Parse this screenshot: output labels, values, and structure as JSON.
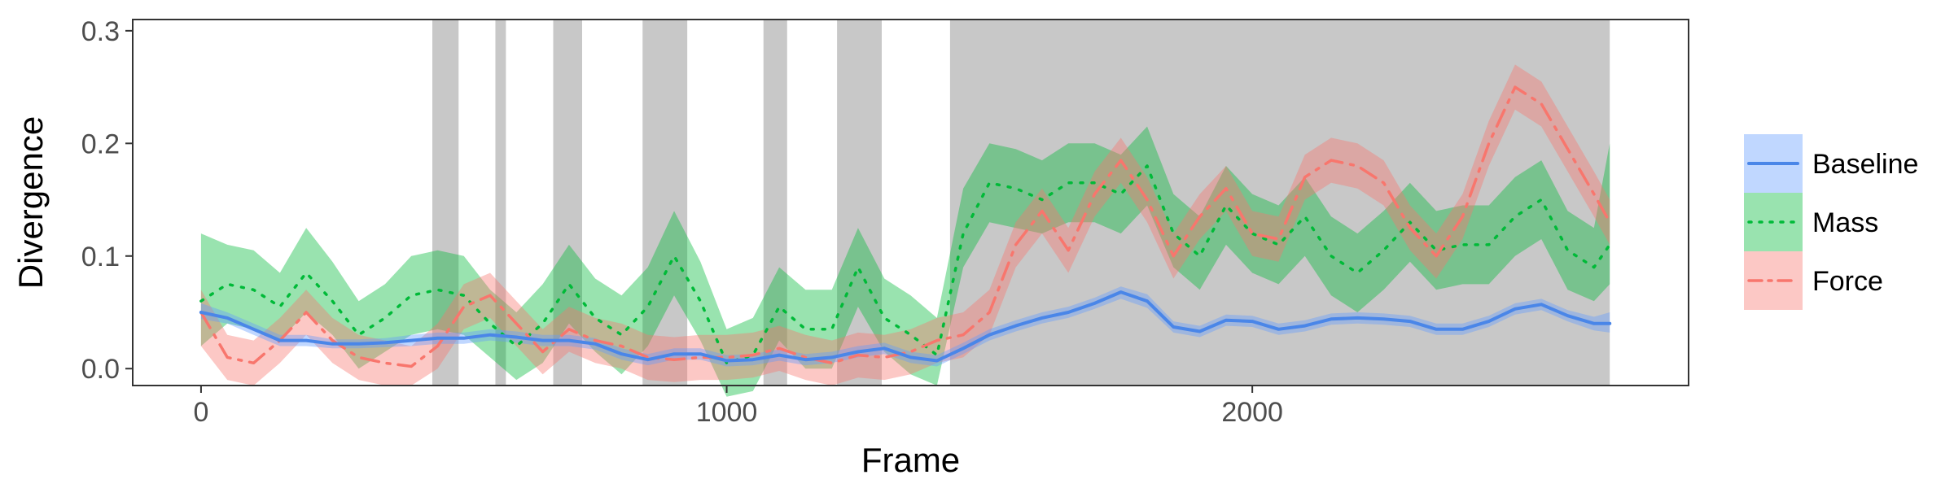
{
  "chart_data": {
    "type": "line",
    "title": "",
    "xlabel": "Frame",
    "ylabel": "Divergence",
    "xlim": [
      -130,
      2830
    ],
    "ylim": [
      -0.015,
      0.31
    ],
    "xticks": [
      0,
      1000,
      2000
    ],
    "xtick_labels": [
      "0",
      "1000",
      "2000"
    ],
    "yticks": [
      0.0,
      0.1,
      0.2,
      0.3
    ],
    "ytick_labels": [
      "0.0",
      "0.1",
      "0.2",
      "0.3"
    ],
    "grid": false,
    "legend_position": "right",
    "shaded_regions": [
      [
        440,
        490
      ],
      [
        560,
        580
      ],
      [
        670,
        725
      ],
      [
        840,
        925
      ],
      [
        1070,
        1115
      ],
      [
        1210,
        1295
      ],
      [
        1425,
        2680
      ]
    ],
    "x": [
      0,
      50,
      100,
      150,
      200,
      250,
      300,
      350,
      400,
      450,
      500,
      550,
      600,
      650,
      700,
      750,
      800,
      850,
      900,
      950,
      1000,
      1050,
      1100,
      1150,
      1200,
      1250,
      1300,
      1350,
      1400,
      1450,
      1500,
      1550,
      1600,
      1650,
      1700,
      1750,
      1800,
      1850,
      1900,
      1950,
      2000,
      2050,
      2100,
      2150,
      2200,
      2250,
      2300,
      2350,
      2400,
      2450,
      2500,
      2550,
      2600,
      2650,
      2680
    ],
    "series": [
      {
        "name": "Baseline",
        "color": "#619cff",
        "line_color": "#4a86e8",
        "dash": "solid",
        "values": [
          0.05,
          0.045,
          0.035,
          0.025,
          0.025,
          0.022,
          0.022,
          0.023,
          0.025,
          0.027,
          0.027,
          0.03,
          0.028,
          0.025,
          0.025,
          0.022,
          0.013,
          0.008,
          0.013,
          0.013,
          0.007,
          0.008,
          0.012,
          0.008,
          0.01,
          0.015,
          0.018,
          0.01,
          0.007,
          0.018,
          0.03,
          0.038,
          0.045,
          0.05,
          0.058,
          0.068,
          0.06,
          0.037,
          0.033,
          0.043,
          0.042,
          0.035,
          0.038,
          0.044,
          0.045,
          0.044,
          0.042,
          0.035,
          0.035,
          0.042,
          0.053,
          0.057,
          0.047,
          0.04,
          0.04
        ],
        "lower": [
          0.044,
          0.04,
          0.03,
          0.02,
          0.02,
          0.018,
          0.018,
          0.019,
          0.02,
          0.022,
          0.022,
          0.025,
          0.023,
          0.02,
          0.02,
          0.017,
          0.008,
          0.003,
          0.008,
          0.008,
          0.002,
          0.003,
          0.007,
          0.003,
          0.005,
          0.01,
          0.013,
          0.005,
          0.002,
          0.013,
          0.025,
          0.033,
          0.04,
          0.045,
          0.053,
          0.062,
          0.054,
          0.032,
          0.028,
          0.038,
          0.037,
          0.03,
          0.033,
          0.039,
          0.04,
          0.039,
          0.037,
          0.03,
          0.03,
          0.037,
          0.048,
          0.052,
          0.042,
          0.034,
          0.032
        ],
        "upper": [
          0.058,
          0.05,
          0.04,
          0.03,
          0.03,
          0.026,
          0.026,
          0.027,
          0.03,
          0.032,
          0.032,
          0.035,
          0.033,
          0.03,
          0.03,
          0.027,
          0.018,
          0.013,
          0.018,
          0.018,
          0.012,
          0.013,
          0.017,
          0.013,
          0.015,
          0.02,
          0.023,
          0.015,
          0.012,
          0.023,
          0.035,
          0.043,
          0.05,
          0.055,
          0.063,
          0.073,
          0.066,
          0.042,
          0.038,
          0.048,
          0.047,
          0.04,
          0.043,
          0.049,
          0.05,
          0.049,
          0.047,
          0.04,
          0.04,
          0.047,
          0.058,
          0.062,
          0.052,
          0.046,
          0.05
        ]
      },
      {
        "name": "Mass",
        "color": "#00ba38",
        "line_color": "#00ba38",
        "dash": "dotted",
        "values": [
          0.06,
          0.075,
          0.07,
          0.055,
          0.085,
          0.06,
          0.03,
          0.045,
          0.065,
          0.07,
          0.065,
          0.04,
          0.02,
          0.04,
          0.075,
          0.045,
          0.03,
          0.055,
          0.1,
          0.06,
          0.005,
          0.012,
          0.055,
          0.035,
          0.035,
          0.09,
          0.045,
          0.03,
          0.012,
          0.12,
          0.165,
          0.16,
          0.15,
          0.165,
          0.165,
          0.155,
          0.18,
          0.12,
          0.1,
          0.145,
          0.12,
          0.11,
          0.135,
          0.1,
          0.085,
          0.105,
          0.13,
          0.105,
          0.11,
          0.11,
          0.135,
          0.15,
          0.105,
          0.09,
          0.11
        ],
        "lower": [
          0.02,
          0.04,
          0.035,
          0.025,
          0.05,
          0.03,
          0.0,
          0.015,
          0.03,
          0.035,
          0.03,
          0.01,
          -0.01,
          0.005,
          0.04,
          0.015,
          -0.005,
          0.02,
          0.065,
          0.025,
          -0.025,
          -0.02,
          0.025,
          0.0,
          0.0,
          0.055,
          0.015,
          -0.005,
          -0.015,
          0.09,
          0.13,
          0.125,
          0.12,
          0.13,
          0.13,
          0.12,
          0.145,
          0.09,
          0.07,
          0.11,
          0.085,
          0.075,
          0.1,
          0.065,
          0.05,
          0.07,
          0.095,
          0.07,
          0.075,
          0.075,
          0.1,
          0.115,
          0.07,
          0.06,
          0.075
        ],
        "upper": [
          0.12,
          0.11,
          0.105,
          0.085,
          0.125,
          0.095,
          0.06,
          0.075,
          0.1,
          0.105,
          0.1,
          0.07,
          0.05,
          0.075,
          0.11,
          0.08,
          0.065,
          0.09,
          0.14,
          0.095,
          0.035,
          0.045,
          0.09,
          0.07,
          0.07,
          0.125,
          0.08,
          0.065,
          0.045,
          0.16,
          0.2,
          0.195,
          0.185,
          0.2,
          0.2,
          0.19,
          0.215,
          0.155,
          0.135,
          0.18,
          0.155,
          0.145,
          0.17,
          0.135,
          0.12,
          0.14,
          0.165,
          0.14,
          0.145,
          0.145,
          0.17,
          0.185,
          0.14,
          0.125,
          0.2
        ]
      },
      {
        "name": "Force",
        "color": "#f8766d",
        "line_color": "#f8766d",
        "dash": "dashdot",
        "values": [
          0.05,
          0.01,
          0.005,
          0.025,
          0.05,
          0.025,
          0.01,
          0.005,
          0.002,
          0.02,
          0.055,
          0.065,
          0.04,
          0.015,
          0.035,
          0.025,
          0.02,
          0.01,
          0.008,
          0.01,
          0.01,
          0.012,
          0.018,
          0.01,
          0.005,
          0.012,
          0.01,
          0.015,
          0.025,
          0.03,
          0.05,
          0.11,
          0.14,
          0.105,
          0.155,
          0.185,
          0.15,
          0.1,
          0.135,
          0.16,
          0.12,
          0.115,
          0.17,
          0.185,
          0.18,
          0.165,
          0.125,
          0.1,
          0.135,
          0.2,
          0.25,
          0.235,
          0.195,
          0.155,
          0.13
        ],
        "lower": [
          0.02,
          -0.01,
          -0.015,
          0.005,
          0.03,
          0.005,
          -0.01,
          -0.015,
          -0.015,
          0.0,
          0.035,
          0.045,
          0.02,
          -0.005,
          0.015,
          0.005,
          0.0,
          -0.01,
          -0.012,
          -0.01,
          -0.01,
          -0.008,
          -0.002,
          -0.01,
          -0.015,
          -0.008,
          -0.01,
          -0.005,
          0.005,
          0.01,
          0.03,
          0.09,
          0.12,
          0.085,
          0.135,
          0.165,
          0.13,
          0.08,
          0.115,
          0.14,
          0.1,
          0.095,
          0.15,
          0.165,
          0.16,
          0.145,
          0.105,
          0.08,
          0.115,
          0.18,
          0.23,
          0.215,
          0.175,
          0.135,
          0.11
        ],
        "upper": [
          0.07,
          0.03,
          0.025,
          0.045,
          0.07,
          0.045,
          0.03,
          0.025,
          0.02,
          0.04,
          0.075,
          0.085,
          0.06,
          0.035,
          0.055,
          0.045,
          0.04,
          0.03,
          0.028,
          0.03,
          0.03,
          0.032,
          0.038,
          0.03,
          0.025,
          0.032,
          0.03,
          0.035,
          0.045,
          0.05,
          0.07,
          0.13,
          0.16,
          0.125,
          0.175,
          0.205,
          0.17,
          0.12,
          0.155,
          0.18,
          0.14,
          0.135,
          0.19,
          0.205,
          0.2,
          0.185,
          0.145,
          0.12,
          0.155,
          0.22,
          0.27,
          0.255,
          0.215,
          0.175,
          0.15
        ]
      }
    ]
  }
}
